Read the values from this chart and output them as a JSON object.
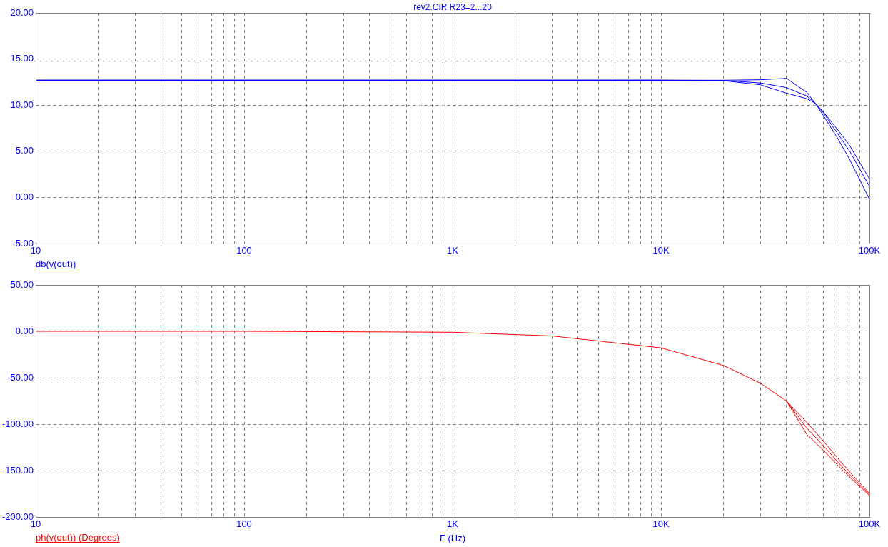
{
  "chart_data": [
    {
      "type": "line",
      "title": "rev2.CIR R23=2...20",
      "annotations": [
        "db(v(out))"
      ],
      "log": "x",
      "grid": true,
      "legend": false,
      "marker": "none",
      "line_style": "solid",
      "x": [
        10,
        100,
        1000,
        10000,
        20000,
        30000,
        40000,
        50000,
        55000,
        60000,
        70000,
        80000,
        100000
      ],
      "series": [
        {
          "color": "#0000ff",
          "values": [
            12.7,
            12.7,
            12.7,
            12.7,
            12.7,
            12.75,
            12.9,
            11.4,
            10.2,
            8.9,
            6.5,
            4.2,
            -0.2
          ]
        },
        {
          "color": "#0000ff",
          "values": [
            12.7,
            12.7,
            12.7,
            12.7,
            12.68,
            12.4,
            11.9,
            11.0,
            10.2,
            9.2,
            7.0,
            5.1,
            1.2
          ]
        },
        {
          "color": "#0000ff",
          "values": [
            12.7,
            12.7,
            12.7,
            12.7,
            12.65,
            12.2,
            11.3,
            10.7,
            10.2,
            9.3,
            7.4,
            5.7,
            2.0
          ]
        }
      ],
      "xlim": [
        10,
        100000
      ],
      "xticks": [
        {
          "value": 10,
          "label": "10"
        },
        {
          "value": 20,
          "label": null
        },
        {
          "value": 30,
          "label": null
        },
        {
          "value": 40,
          "label": null
        },
        {
          "value": 50,
          "label": null
        },
        {
          "value": 60,
          "label": null
        },
        {
          "value": 70,
          "label": null
        },
        {
          "value": 80,
          "label": null
        },
        {
          "value": 90,
          "label": null
        },
        {
          "value": 100,
          "label": "100"
        },
        {
          "value": 200,
          "label": null
        },
        {
          "value": 300,
          "label": null
        },
        {
          "value": 400,
          "label": null
        },
        {
          "value": 500,
          "label": null
        },
        {
          "value": 600,
          "label": null
        },
        {
          "value": 700,
          "label": null
        },
        {
          "value": 800,
          "label": null
        },
        {
          "value": 900,
          "label": null
        },
        {
          "value": 1000,
          "label": "1K"
        },
        {
          "value": 2000,
          "label": null
        },
        {
          "value": 3000,
          "label": null
        },
        {
          "value": 4000,
          "label": null
        },
        {
          "value": 5000,
          "label": null
        },
        {
          "value": 6000,
          "label": null
        },
        {
          "value": 7000,
          "label": null
        },
        {
          "value": 8000,
          "label": null
        },
        {
          "value": 9000,
          "label": null
        },
        {
          "value": 10000,
          "label": "10K"
        },
        {
          "value": 20000,
          "label": null
        },
        {
          "value": 30000,
          "label": null
        },
        {
          "value": 40000,
          "label": null
        },
        {
          "value": 50000,
          "label": null
        },
        {
          "value": 60000,
          "label": null
        },
        {
          "value": 70000,
          "label": null
        },
        {
          "value": 80000,
          "label": null
        },
        {
          "value": 90000,
          "label": null
        },
        {
          "value": 100000,
          "label": "100K"
        }
      ],
      "ylim": [
        -5,
        20
      ],
      "yticks": [
        {
          "value": -5,
          "label": "-5.00"
        },
        {
          "value": 0,
          "label": "0.00"
        },
        {
          "value": 5,
          "label": "5.00"
        },
        {
          "value": 10,
          "label": "10.00"
        },
        {
          "value": 15,
          "label": "15.00"
        },
        {
          "value": 20,
          "label": "20.00"
        }
      ]
    },
    {
      "type": "line",
      "annotations": [
        "ph(v(out)) (Degrees)"
      ],
      "xlabel": "F (Hz)",
      "log": "x",
      "grid": true,
      "legend": false,
      "marker": "none",
      "line_style": "solid",
      "x": [
        10,
        100,
        1000,
        3000,
        10000,
        20000,
        30000,
        40000,
        50000,
        60000,
        70000,
        80000,
        100000
      ],
      "series": [
        {
          "color": "#ff0000",
          "values": [
            null,
            null,
            null,
            null,
            null,
            null,
            null,
            -75,
            -97.9,
            -118,
            -136,
            -151,
            -174.5
          ]
        },
        {
          "color": "#ff0000",
          "values": [
            0,
            0,
            -1,
            -5,
            -17.8,
            -36.9,
            -56,
            -75,
            -104,
            -123,
            -140,
            -154,
            -175.6
          ]
        },
        {
          "color": "#ff0000",
          "values": [
            null,
            null,
            null,
            null,
            null,
            null,
            null,
            -75,
            -110.8,
            -128,
            -143.6,
            -156.5,
            -176.8
          ]
        }
      ],
      "xlim": [
        10,
        100000
      ],
      "xticks": [
        {
          "value": 10,
          "label": "10"
        },
        {
          "value": 20,
          "label": null
        },
        {
          "value": 30,
          "label": null
        },
        {
          "value": 40,
          "label": null
        },
        {
          "value": 50,
          "label": null
        },
        {
          "value": 60,
          "label": null
        },
        {
          "value": 70,
          "label": null
        },
        {
          "value": 80,
          "label": null
        },
        {
          "value": 90,
          "label": null
        },
        {
          "value": 100,
          "label": "100"
        },
        {
          "value": 200,
          "label": null
        },
        {
          "value": 300,
          "label": null
        },
        {
          "value": 400,
          "label": null
        },
        {
          "value": 500,
          "label": null
        },
        {
          "value": 600,
          "label": null
        },
        {
          "value": 700,
          "label": null
        },
        {
          "value": 800,
          "label": null
        },
        {
          "value": 900,
          "label": null
        },
        {
          "value": 1000,
          "label": "1K"
        },
        {
          "value": 2000,
          "label": null
        },
        {
          "value": 3000,
          "label": null
        },
        {
          "value": 4000,
          "label": null
        },
        {
          "value": 5000,
          "label": null
        },
        {
          "value": 6000,
          "label": null
        },
        {
          "value": 7000,
          "label": null
        },
        {
          "value": 8000,
          "label": null
        },
        {
          "value": 9000,
          "label": null
        },
        {
          "value": 10000,
          "label": "10K"
        },
        {
          "value": 20000,
          "label": null
        },
        {
          "value": 30000,
          "label": null
        },
        {
          "value": 40000,
          "label": null
        },
        {
          "value": 50000,
          "label": null
        },
        {
          "value": 60000,
          "label": null
        },
        {
          "value": 70000,
          "label": null
        },
        {
          "value": 80000,
          "label": null
        },
        {
          "value": 90000,
          "label": null
        },
        {
          "value": 100000,
          "label": "100K"
        }
      ],
      "ylim": [
        -200,
        50
      ],
      "yticks": [
        {
          "value": -200,
          "label": "-200.00"
        },
        {
          "value": -150,
          "label": "-150.00"
        },
        {
          "value": -100,
          "label": "-100.00"
        },
        {
          "value": -50,
          "label": "-50.00"
        },
        {
          "value": 0,
          "label": "0.00"
        },
        {
          "value": 50,
          "label": "50.00"
        }
      ]
    }
  ]
}
